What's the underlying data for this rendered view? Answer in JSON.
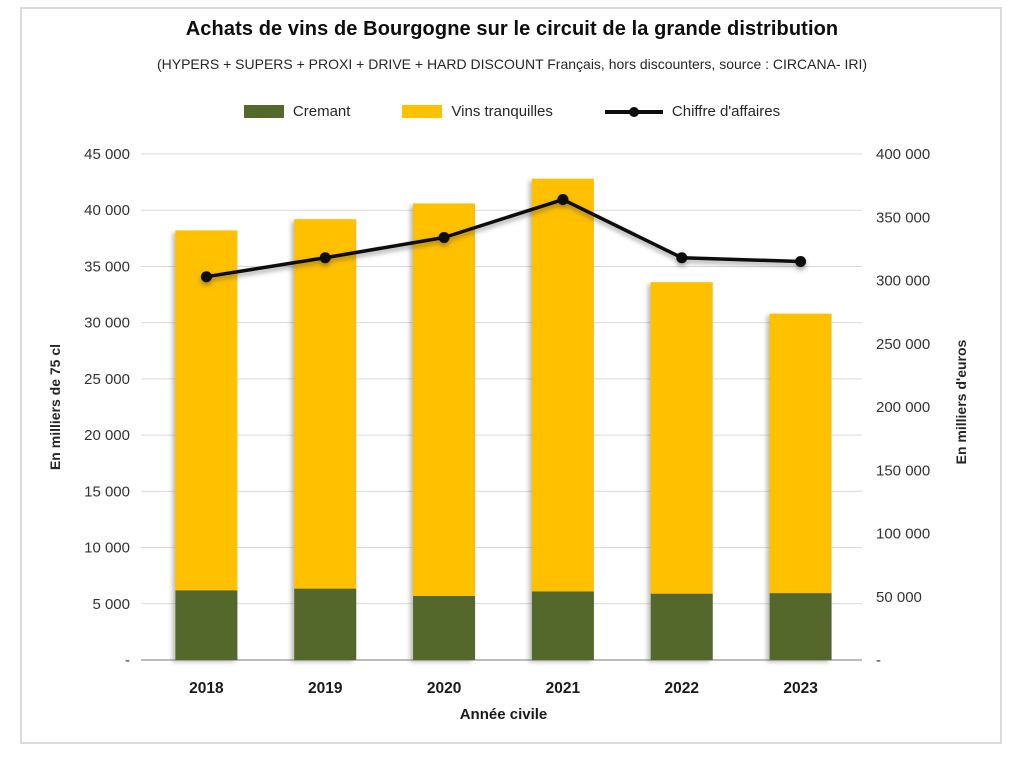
{
  "chart_data": {
    "type": "combo-stacked-bar-line",
    "title": "Achats de vins de Bourgogne sur le circuit de la grande distribution",
    "subtitle": "(HYPERS + SUPERS + PROXI + DRIVE + HARD DISCOUNT Français, hors discounters, source : CIRCANA- IRI)",
    "categories": [
      "2018",
      "2019",
      "2020",
      "2021",
      "2022",
      "2023"
    ],
    "x_title": "Année civile",
    "series": [
      {
        "name": "Cremant",
        "type": "bar",
        "stack": "volume",
        "axis": "left",
        "color": "#55682B",
        "values": [
          6200,
          6350,
          5700,
          6100,
          5900,
          5950
        ]
      },
      {
        "name": "Vins tranquilles",
        "type": "bar",
        "stack": "volume",
        "axis": "left",
        "color": "#FFC000",
        "values": [
          32000,
          32850,
          34900,
          36700,
          27700,
          24850
        ]
      },
      {
        "name": "Chiffre d'affaires",
        "type": "line",
        "axis": "right",
        "color": "#0D0D0D",
        "marker": "circle",
        "values": [
          303000,
          318000,
          334000,
          364000,
          318000,
          315000
        ]
      }
    ],
    "stacked_totals": [
      38200,
      39200,
      40600,
      42800,
      33600,
      30800
    ],
    "y_left": {
      "title": "En milliers de 75 cl",
      "min": 0,
      "max": 45000,
      "step": 5000,
      "tick_labels": [
        "-",
        "5 000",
        "10 000",
        "15 000",
        "20 000",
        "25 000",
        "30 000",
        "35 000",
        "40 000",
        "45 000"
      ]
    },
    "y_right": {
      "title": "En milliers d'euros",
      "min": 0,
      "max": 400000,
      "step": 50000,
      "tick_labels": [
        "-",
        "50 000",
        "100 000",
        "150 000",
        "200 000",
        "250 000",
        "300 000",
        "350 000",
        "400 000"
      ]
    },
    "legend_position": "top",
    "grid": true,
    "colors": {
      "gridline": "#D9D9D9",
      "axis_line": "#A6A6A6",
      "frame_border": "#DBDBDB",
      "tick_text": "#333333",
      "category_text": "#1A1A1A"
    }
  }
}
